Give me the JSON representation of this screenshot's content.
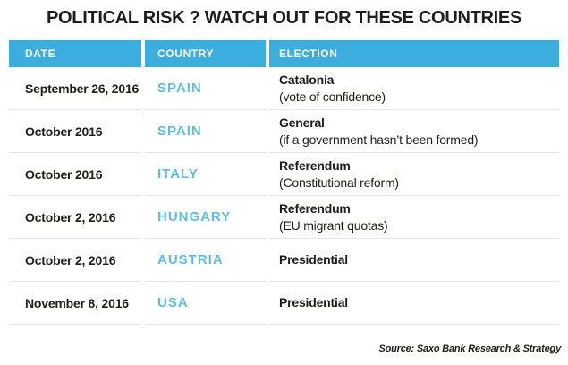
{
  "title": "POLITICAL RISK ? WATCH OUT FOR THESE COUNTRIES",
  "chart_data": {
    "type": "table",
    "title": "POLITICAL RISK ? WATCH OUT FOR THESE COUNTRIES",
    "columns": [
      "DATE",
      "COUNTRY",
      "ELECTION"
    ],
    "rows": [
      {
        "date": "September 26, 2016",
        "country": "SPAIN",
        "election": "Catalonia",
        "election_detail": "(vote of confidence)"
      },
      {
        "date": "October 2016",
        "country": "SPAIN",
        "election": "General",
        "election_detail": "(if a government hasn’t been formed)"
      },
      {
        "date": "October 2016",
        "country": "ITALY",
        "election": "Referendum",
        "election_detail": "(Constitutional reform)"
      },
      {
        "date": "October 2, 2016",
        "country": "HUNGARY",
        "election": "Referendum",
        "election_detail": "(EU migrant quotas)"
      },
      {
        "date": "October 2, 2016",
        "country": "AUSTRIA",
        "election": "Presidential",
        "election_detail": ""
      },
      {
        "date": "November 8, 2016",
        "country": "USA",
        "election": "Presidential",
        "election_detail": ""
      }
    ],
    "source": "Source: Saxo Bank Research & Strategy"
  },
  "colors": {
    "header_bg": "#3badde",
    "header_text": "#ffffff",
    "country_text": "#5cbee0",
    "body_text": "#1d1d1b",
    "separator": "#e4e4e4",
    "background": "#ffffff"
  }
}
